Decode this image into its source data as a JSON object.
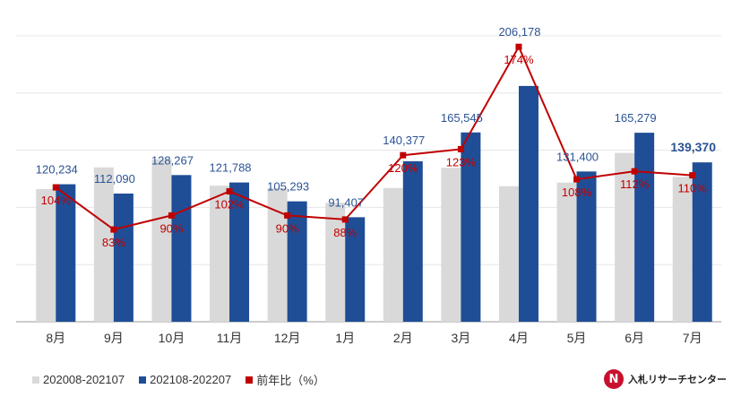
{
  "chart_data": {
    "type": "bar",
    "categories": [
      "8月",
      "9月",
      "10月",
      "11月",
      "12月",
      "1月",
      "2月",
      "3月",
      "4月",
      "5月",
      "6月",
      "7月"
    ],
    "ylim": [
      0,
      250000
    ],
    "grid": true,
    "legend_position": "bottom-left",
    "series": [
      {
        "name": "202008-202107",
        "type": "bar",
        "color": "#d9d9d9",
        "values": [
          116000,
          135000,
          142000,
          119000,
          117000,
          104000,
          117000,
          134600,
          118500,
          121700,
          147600,
          126700
        ]
      },
      {
        "name": "202108-202207",
        "type": "bar",
        "color": "#1f4e96",
        "values": [
          120234,
          112090,
          128267,
          121788,
          105293,
          91407,
          140377,
          165545,
          206178,
          131400,
          165279,
          139370
        ],
        "labels": [
          "120,234",
          "112,090",
          "128,267",
          "121,788",
          "105,293",
          "91,407",
          "140,377",
          "165,545",
          "206,178",
          "131,400",
          "165,279",
          "139,370"
        ]
      },
      {
        "name": "前年比（%）",
        "type": "line",
        "color": "#c00000",
        "values": [
          104,
          83,
          90,
          102,
          90,
          88,
          120,
          123,
          174,
          108,
          112,
          110
        ],
        "labels": [
          "104%",
          "83%",
          "90%",
          "102%",
          "90%",
          "88%",
          "120%",
          "123%",
          "174%",
          "108%",
          "112%",
          "110%"
        ]
      }
    ]
  },
  "logo": {
    "mark": "N",
    "text": "入札リサーチセンター"
  }
}
